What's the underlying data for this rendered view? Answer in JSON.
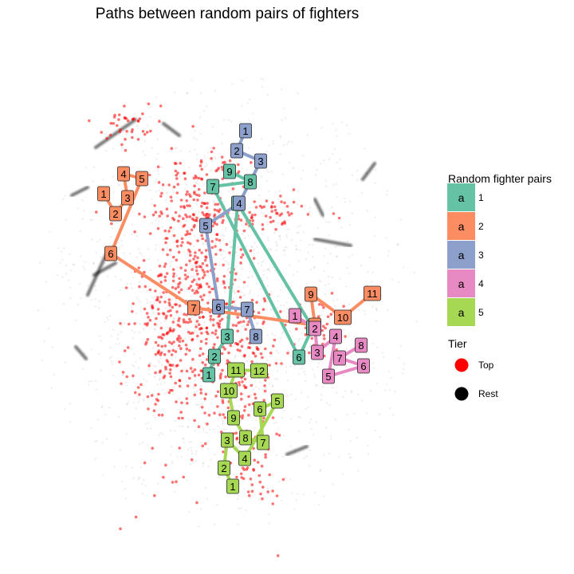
{
  "chart_data": {
    "type": "scatter",
    "title": "Paths between random pairs of fighters",
    "xlabel": "",
    "ylabel": "",
    "grid": false,
    "legend_placement": "right",
    "legends": {
      "pairs": {
        "title": "Random fighter pairs",
        "key_glyph": "a",
        "entries": [
          {
            "label": "1",
            "color": "#66c2a5"
          },
          {
            "label": "2",
            "color": "#fc8d62"
          },
          {
            "label": "3",
            "color": "#8da0cb"
          },
          {
            "label": "4",
            "color": "#e78ac3"
          },
          {
            "label": "5",
            "color": "#a6d854"
          }
        ]
      },
      "tier": {
        "title": "Tier",
        "entries": [
          {
            "label": "Top",
            "color": "#ff0000"
          },
          {
            "label": "Rest",
            "color": "#000000"
          }
        ]
      }
    },
    "series": [
      {
        "pair": "1",
        "color": "#66c2a5",
        "path": [
          {
            "label": "1",
            "x": 262,
            "y": 470
          },
          {
            "label": "2",
            "x": 269,
            "y": 447
          },
          {
            "label": "3",
            "x": 285,
            "y": 422
          },
          {
            "label": "4",
            "x": 298,
            "y": 255
          },
          {
            "label": "5",
            "x": 392,
            "y": 411
          },
          {
            "label": "6",
            "x": 375,
            "y": 448
          },
          {
            "label": "7",
            "x": 267,
            "y": 234
          },
          {
            "label": "8",
            "x": 314,
            "y": 228
          },
          {
            "label": "9",
            "x": 288,
            "y": 215
          }
        ]
      },
      {
        "pair": "2",
        "color": "#fc8d62",
        "path": [
          {
            "label": "1",
            "x": 130,
            "y": 243
          },
          {
            "label": "2",
            "x": 145,
            "y": 268
          },
          {
            "label": "3",
            "x": 160,
            "y": 248
          },
          {
            "label": "4",
            "x": 155,
            "y": 218
          },
          {
            "label": "5",
            "x": 178,
            "y": 224
          },
          {
            "label": "6",
            "x": 139,
            "y": 318
          },
          {
            "label": "7",
            "x": 243,
            "y": 386
          },
          {
            "label": "8",
            "x": 395,
            "y": 408
          },
          {
            "label": "9",
            "x": 390,
            "y": 369
          },
          {
            "label": "10",
            "x": 430,
            "y": 398
          },
          {
            "label": "11",
            "x": 467,
            "y": 368
          }
        ]
      },
      {
        "pair": "3",
        "color": "#8da0cb",
        "path": [
          {
            "label": "1",
            "x": 308,
            "y": 164
          },
          {
            "label": "2",
            "x": 297,
            "y": 189
          },
          {
            "label": "3",
            "x": 327,
            "y": 202
          },
          {
            "label": "4",
            "x": 300,
            "y": 255
          },
          {
            "label": "5",
            "x": 258,
            "y": 283
          },
          {
            "label": "6",
            "x": 274,
            "y": 385
          },
          {
            "label": "7",
            "x": 310,
            "y": 388
          },
          {
            "label": "8",
            "x": 321,
            "y": 422
          }
        ]
      },
      {
        "pair": "4",
        "color": "#e78ac3",
        "path": [
          {
            "label": "1",
            "x": 370,
            "y": 396
          },
          {
            "label": "2",
            "x": 395,
            "y": 412
          },
          {
            "label": "3",
            "x": 398,
            "y": 442
          },
          {
            "label": "4",
            "x": 421,
            "y": 422
          },
          {
            "label": "5",
            "x": 412,
            "y": 472
          },
          {
            "label": "6",
            "x": 456,
            "y": 459
          },
          {
            "label": "7",
            "x": 426,
            "y": 449
          },
          {
            "label": "8",
            "x": 453,
            "y": 433
          }
        ]
      },
      {
        "pair": "5",
        "color": "#a6d854",
        "path": [
          {
            "label": "1",
            "x": 292,
            "y": 610
          },
          {
            "label": "2",
            "x": 281,
            "y": 587
          },
          {
            "label": "3",
            "x": 285,
            "y": 552
          },
          {
            "label": "4",
            "x": 307,
            "y": 575
          },
          {
            "label": "5",
            "x": 348,
            "y": 503
          },
          {
            "label": "6",
            "x": 326,
            "y": 513
          },
          {
            "label": "7",
            "x": 330,
            "y": 555
          },
          {
            "label": "8",
            "x": 308,
            "y": 549
          },
          {
            "label": "9",
            "x": 293,
            "y": 524
          },
          {
            "label": "10",
            "x": 287,
            "y": 490
          },
          {
            "label": "11",
            "x": 296,
            "y": 464
          },
          {
            "label": "12",
            "x": 325,
            "y": 465
          }
        ]
      }
    ]
  }
}
